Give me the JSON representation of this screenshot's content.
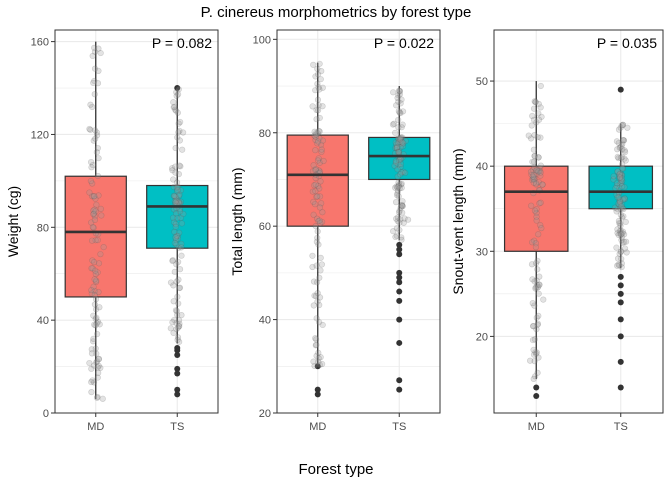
{
  "figure": {
    "title": "P. cinereus morphometrics by forest type",
    "xlabel": "Forest type"
  },
  "colors": {
    "MD": "#F8766D",
    "TS": "#00BFC4",
    "median": "#333333",
    "whisker": "#333333",
    "outlier": "#333333",
    "jitter": "#999999",
    "grid": "#EBEBEB",
    "panel_border": "#333333"
  },
  "chart_data": [
    {
      "type": "box",
      "title": "",
      "xlabel": "",
      "ylabel": "Weight (cg)",
      "categories": [
        "MD",
        "TS"
      ],
      "ylim": [
        0,
        165
      ],
      "yticks": [
        0,
        40,
        80,
        120,
        160
      ],
      "grid": true,
      "annotation": "P = 0.082",
      "boxes": [
        {
          "category": "MD",
          "whisker_low": 6,
          "q1": 50,
          "median": 78,
          "q3": 102,
          "whisker_high": 160,
          "outliers": []
        },
        {
          "category": "TS",
          "whisker_low": 30,
          "q1": 71,
          "median": 89,
          "q3": 98,
          "whisker_high": 140,
          "outliers": [
            8,
            10,
            17,
            19,
            25,
            27,
            28,
            140
          ]
        }
      ]
    },
    {
      "type": "box",
      "title": "",
      "xlabel": "",
      "ylabel": "Total length (mm)",
      "categories": [
        "MD",
        "TS"
      ],
      "ylim": [
        20,
        102
      ],
      "yticks": [
        20,
        40,
        60,
        80,
        100
      ],
      "grid": true,
      "annotation": "P = 0.022",
      "boxes": [
        {
          "category": "MD",
          "whisker_low": 30,
          "q1": 60,
          "median": 71,
          "q3": 79.5,
          "whisker_high": 95,
          "outliers": [
            24,
            25,
            30
          ]
        },
        {
          "category": "TS",
          "whisker_low": 57,
          "q1": 70,
          "median": 75,
          "q3": 79,
          "whisker_high": 90,
          "outliers": [
            25,
            27,
            35,
            40,
            44,
            46,
            48,
            49,
            50,
            54,
            55,
            56
          ]
        }
      ]
    },
    {
      "type": "box",
      "title": "",
      "xlabel": "",
      "ylabel": "Snout-vent length (mm)",
      "categories": [
        "MD",
        "TS"
      ],
      "ylim": [
        11,
        56
      ],
      "yticks": [
        20,
        30,
        40,
        50
      ],
      "grid": true,
      "annotation": "P = 0.035",
      "boxes": [
        {
          "category": "MD",
          "whisker_low": 15,
          "q1": 30,
          "median": 37,
          "q3": 40,
          "whisker_high": 50,
          "outliers": [
            13,
            14
          ]
        },
        {
          "category": "TS",
          "whisker_low": 28,
          "q1": 35,
          "median": 37,
          "q3": 40,
          "whisker_high": 45,
          "outliers": [
            14,
            17,
            20,
            22,
            24,
            25,
            26,
            27,
            49
          ]
        }
      ]
    }
  ]
}
